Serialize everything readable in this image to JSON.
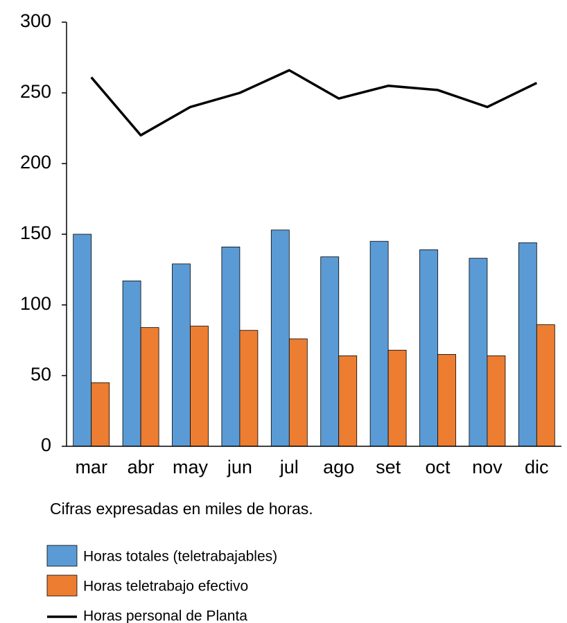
{
  "chart_data": {
    "type": "bar",
    "note": "Cifras expresadas en miles de horas.",
    "categories": [
      "mar",
      "abr",
      "may",
      "jun",
      "jul",
      "ago",
      "set",
      "oct",
      "nov",
      "dic"
    ],
    "series": [
      {
        "name": "Horas totales (teletrabajables)",
        "type": "bar",
        "color": "#5b9bd5",
        "values": [
          150,
          117,
          129,
          141,
          153,
          134,
          145,
          139,
          133,
          144
        ]
      },
      {
        "name": "Horas teletrabajo efectivo",
        "type": "bar",
        "color": "#ed7d31",
        "values": [
          45,
          84,
          85,
          82,
          76,
          64,
          68,
          65,
          64,
          86
        ]
      },
      {
        "name": "Horas personal de Planta",
        "type": "line",
        "color": "#000000",
        "values": [
          261,
          220,
          240,
          250,
          266,
          246,
          255,
          252,
          240,
          257
        ]
      }
    ],
    "ylim": [
      0,
      300
    ],
    "yticks": [
      0,
      50,
      100,
      150,
      200,
      250,
      300
    ],
    "grid": false
  }
}
